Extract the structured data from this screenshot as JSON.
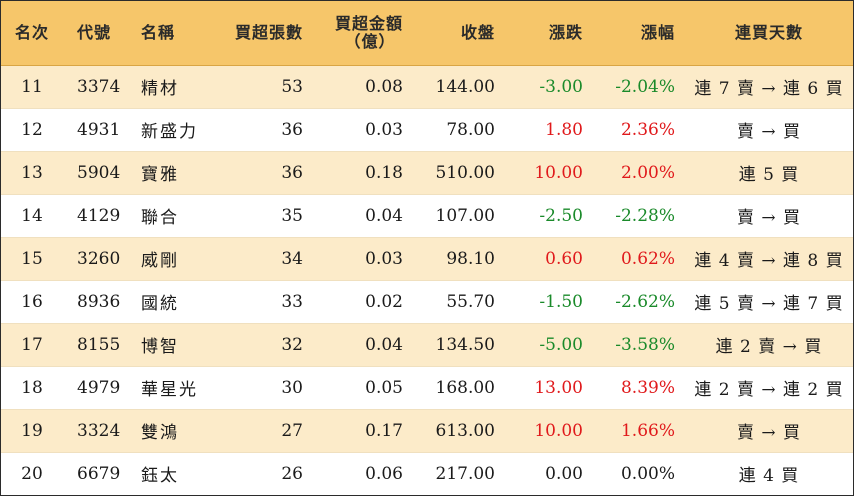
{
  "headers": {
    "rank": "名次",
    "code": "代號",
    "name": "名稱",
    "net_buy_lots": "買超張數",
    "net_buy_amount_line1": "買超金額",
    "net_buy_amount_line2": "（億）",
    "close": "收盤",
    "change": "漲跌",
    "change_pct": "漲幅",
    "buy_days": "連買天數"
  },
  "colors": {
    "header_bg": "#f6c66a",
    "alt_row_bg": "#fcebc9",
    "up": "#e0191b",
    "down": "#1a8a2a"
  },
  "rows": [
    {
      "rank": "11",
      "code": "3374",
      "name": "精材",
      "lots": "53",
      "amount": "0.08",
      "close": "144.00",
      "change": "-3.00",
      "pct": "-2.04%",
      "days": "連 7 賣 → 連 6 買",
      "dir": "down"
    },
    {
      "rank": "12",
      "code": "4931",
      "name": "新盛力",
      "lots": "36",
      "amount": "0.03",
      "close": "78.00",
      "change": "1.80",
      "pct": "2.36%",
      "days": "賣 → 買",
      "dir": "up"
    },
    {
      "rank": "13",
      "code": "5904",
      "name": "寶雅",
      "lots": "36",
      "amount": "0.18",
      "close": "510.00",
      "change": "10.00",
      "pct": "2.00%",
      "days": "連 5 買",
      "dir": "up"
    },
    {
      "rank": "14",
      "code": "4129",
      "name": "聯合",
      "lots": "35",
      "amount": "0.04",
      "close": "107.00",
      "change": "-2.50",
      "pct": "-2.28%",
      "days": "賣 → 買",
      "dir": "down"
    },
    {
      "rank": "15",
      "code": "3260",
      "name": "威剛",
      "lots": "34",
      "amount": "0.03",
      "close": "98.10",
      "change": "0.60",
      "pct": "0.62%",
      "days": "連 4 賣 → 連 8 買",
      "dir": "up"
    },
    {
      "rank": "16",
      "code": "8936",
      "name": "國統",
      "lots": "33",
      "amount": "0.02",
      "close": "55.70",
      "change": "-1.50",
      "pct": "-2.62%",
      "days": "連 5 賣 → 連 7 買",
      "dir": "down"
    },
    {
      "rank": "17",
      "code": "8155",
      "name": "博智",
      "lots": "32",
      "amount": "0.04",
      "close": "134.50",
      "change": "-5.00",
      "pct": "-3.58%",
      "days": "連 2 賣 → 買",
      "dir": "down"
    },
    {
      "rank": "18",
      "code": "4979",
      "name": "華星光",
      "lots": "30",
      "amount": "0.05",
      "close": "168.00",
      "change": "13.00",
      "pct": "8.39%",
      "days": "連 2 賣 → 連 2 買",
      "dir": "up"
    },
    {
      "rank": "19",
      "code": "3324",
      "name": "雙鴻",
      "lots": "27",
      "amount": "0.17",
      "close": "613.00",
      "change": "10.00",
      "pct": "1.66%",
      "days": "賣 → 買",
      "dir": "up"
    },
    {
      "rank": "20",
      "code": "6679",
      "name": "鈺太",
      "lots": "26",
      "amount": "0.06",
      "close": "217.00",
      "change": "0.00",
      "pct": "0.00%",
      "days": "連 4 買",
      "dir": "flat"
    }
  ]
}
